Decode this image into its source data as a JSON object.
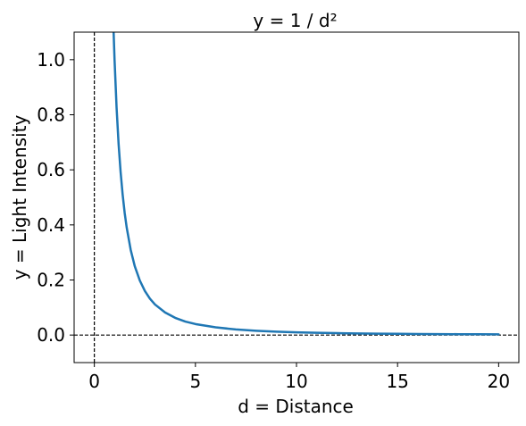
{
  "chart_data": {
    "type": "line",
    "title": "y = 1 / d²",
    "xlabel": "d = Distance",
    "ylabel": "y = Light Intensity",
    "xlim": [
      -1,
      21
    ],
    "ylim": [
      -0.1,
      1.1
    ],
    "xticks": [
      {
        "value": 0,
        "label": "0"
      },
      {
        "value": 5,
        "label": "5"
      },
      {
        "value": 10,
        "label": "10"
      },
      {
        "value": 15,
        "label": "15"
      },
      {
        "value": 20,
        "label": "20"
      }
    ],
    "yticks": [
      {
        "value": 0.0,
        "label": "0.0"
      },
      {
        "value": 0.2,
        "label": "0.2"
      },
      {
        "value": 0.4,
        "label": "0.4"
      },
      {
        "value": 0.6,
        "label": "0.6"
      },
      {
        "value": 0.8,
        "label": "0.8"
      },
      {
        "value": 1.0,
        "label": "1.0"
      }
    ],
    "reference_lines": [
      {
        "orientation": "vertical",
        "x": 0,
        "style": "dashed",
        "color": "#000000"
      },
      {
        "orientation": "horizontal",
        "y": 0,
        "style": "dashed",
        "color": "#000000"
      }
    ],
    "grid": false,
    "series": [
      {
        "color": "#1f77b4",
        "x": [
          0.95,
          1,
          1.1,
          1.2,
          1.3,
          1.4,
          1.5,
          1.6,
          1.8,
          2,
          2.25,
          2.5,
          2.75,
          3,
          3.5,
          4,
          4.5,
          5,
          6,
          7,
          8,
          9,
          10,
          11,
          12,
          13,
          14,
          15,
          16,
          17,
          18,
          19,
          20
        ],
        "y": [
          1.108,
          1.0,
          0.826,
          0.694,
          0.592,
          0.51,
          0.444,
          0.391,
          0.309,
          0.25,
          0.198,
          0.16,
          0.132,
          0.111,
          0.082,
          0.0625,
          0.049,
          0.04,
          0.028,
          0.0204,
          0.0156,
          0.0123,
          0.01,
          0.0083,
          0.0069,
          0.0059,
          0.0051,
          0.0044,
          0.0039,
          0.0035,
          0.0031,
          0.0028,
          0.0025
        ]
      }
    ]
  }
}
